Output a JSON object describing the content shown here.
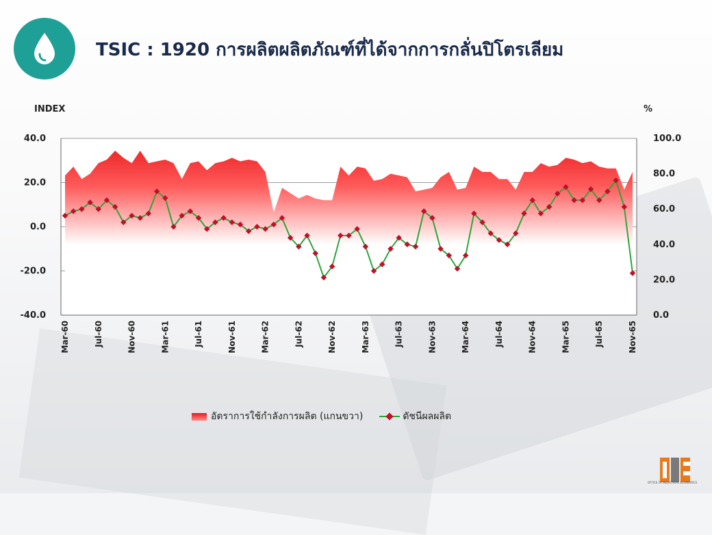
{
  "header": {
    "title": "TSIC : 1920 การผลิตผลิตภัณฑ์ที่ได้จากการกลั่นปิโตรเลียม",
    "icon": "droplet-icon"
  },
  "chart_data": {
    "type": "line",
    "left_axis_unit": "INDEX",
    "right_axis_unit": "%",
    "y_left_lim": [
      -40,
      40
    ],
    "y_left_ticks": [
      "40.0",
      "20.0",
      "0.0",
      "-20.0",
      "-40.0"
    ],
    "y_right_lim": [
      0,
      100
    ],
    "y_right_ticks": [
      "100.0",
      "80.0",
      "60.0",
      "40.0",
      "20.0",
      "0.0"
    ],
    "x_tick_labels": [
      "Mar-60",
      "Jul-60",
      "Nov-60",
      "Mar-61",
      "Jul-61",
      "Nov-61",
      "Mar-62",
      "Jul-62",
      "Nov-62",
      "Mar-63",
      "Jul-63",
      "Nov-63",
      "Mar-64",
      "Jul-64",
      "Nov-64",
      "Mar-65",
      "Jul-65",
      "Nov-65"
    ],
    "grid": "horizontal",
    "legend_position": "bottom",
    "series": [
      {
        "name": "อัตราการใช้กำลังการผลิต (แกนขวา)",
        "kind": "area",
        "axis": "right",
        "color": "#e8191b",
        "values": [
          79,
          84,
          77,
          80,
          86,
          88,
          93,
          89,
          86,
          93,
          86,
          87,
          88,
          86,
          77,
          86,
          87,
          82,
          86,
          87,
          89,
          87,
          88,
          87,
          81,
          58,
          72,
          69,
          66,
          68,
          66,
          65,
          65,
          84,
          79,
          84,
          83,
          76,
          77,
          80,
          79,
          78,
          70,
          71,
          72,
          78,
          81,
          71,
          72,
          84,
          81,
          81,
          77,
          77,
          71,
          81,
          81,
          86,
          84,
          85,
          89,
          88,
          86,
          87,
          84,
          83,
          83,
          71,
          81
        ]
      },
      {
        "name": "ดัชนีผลผลิต",
        "kind": "line",
        "axis": "left",
        "color": "#2aa63a",
        "marker_color": "#c0102a",
        "values": [
          5,
          7,
          8,
          11,
          8,
          12,
          9,
          2,
          5,
          4,
          6,
          16,
          13,
          0,
          5,
          7,
          4,
          -1,
          2,
          4,
          2,
          1,
          -2,
          0,
          -1,
          1,
          4,
          -5,
          -9,
          -4,
          -12,
          -23,
          -18,
          -4,
          -4,
          -1,
          -9,
          -20,
          -17,
          -10,
          -5,
          -8,
          -9,
          7,
          4,
          -10,
          -13,
          -19,
          -13,
          6,
          2,
          -3,
          -6,
          -8,
          -3,
          6,
          12,
          6,
          9,
          15,
          18,
          12,
          12,
          17,
          12,
          16,
          21,
          9,
          -21
        ]
      }
    ]
  },
  "legend": {
    "item1": "อัตราการใช้กำลังการผลิต (แกนขวา)",
    "item2": "ดัชนีผลผลิต"
  },
  "footer": {
    "logo_text": "OFFICE OF INDUSTRIAL ECONOMICS"
  }
}
